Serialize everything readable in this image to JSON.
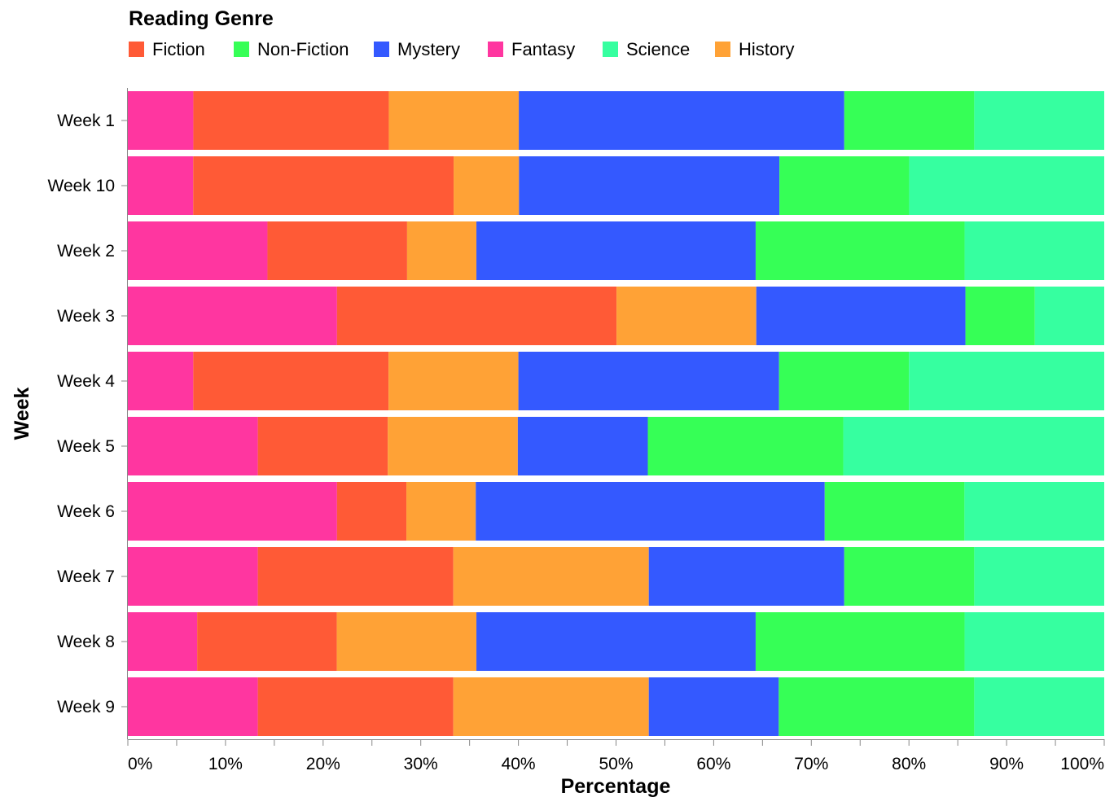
{
  "chart_data": {
    "type": "bar",
    "orientation": "horizontal",
    "stacked": "normalize",
    "legend": {
      "title": "Reading Genre",
      "position": "top-left",
      "entries": [
        {
          "name": "Fiction",
          "color": "#ff5a36"
        },
        {
          "name": "Non-Fiction",
          "color": "#36ff56"
        },
        {
          "name": "Mystery",
          "color": "#3459ff"
        },
        {
          "name": "Fantasy",
          "color": "#ff36a0"
        },
        {
          "name": "Science",
          "color": "#36ffa0"
        },
        {
          "name": "History",
          "color": "#ffa236"
        }
      ]
    },
    "xlabel": "Percentage",
    "ylabel": "Week",
    "xlim": [
      0,
      100
    ],
    "x_ticks": [
      "0%",
      "10%",
      "20%",
      "30%",
      "40%",
      "50%",
      "60%",
      "70%",
      "80%",
      "90%",
      "100%"
    ],
    "stack_order": [
      "Fantasy",
      "Fiction",
      "History",
      "Mystery",
      "Non-Fiction",
      "Science"
    ],
    "categories": [
      "Week 1",
      "Week 10",
      "Week 2",
      "Week 3",
      "Week 4",
      "Week 5",
      "Week 6",
      "Week 7",
      "Week 8",
      "Week 9"
    ],
    "series": [
      {
        "name": "Fantasy",
        "values": [
          6.7,
          6.7,
          14.3,
          21.4,
          6.7,
          13.3,
          21.4,
          13.3,
          7.1,
          13.3
        ]
      },
      {
        "name": "Fiction",
        "values": [
          20.0,
          26.7,
          14.3,
          28.6,
          20.0,
          13.3,
          7.1,
          20.0,
          14.3,
          20.0
        ]
      },
      {
        "name": "History",
        "values": [
          13.3,
          6.7,
          7.1,
          14.3,
          13.3,
          13.3,
          7.1,
          20.0,
          14.3,
          20.0
        ]
      },
      {
        "name": "Mystery",
        "values": [
          33.3,
          26.7,
          28.6,
          21.4,
          26.7,
          13.3,
          35.7,
          20.0,
          28.6,
          13.3
        ]
      },
      {
        "name": "Non-Fiction",
        "values": [
          13.3,
          13.3,
          21.4,
          7.1,
          13.3,
          20.0,
          14.3,
          13.3,
          21.4,
          20.0
        ]
      },
      {
        "name": "Science",
        "values": [
          13.3,
          20.0,
          14.3,
          7.1,
          20.0,
          26.7,
          14.3,
          13.3,
          14.3,
          13.3
        ]
      }
    ]
  }
}
